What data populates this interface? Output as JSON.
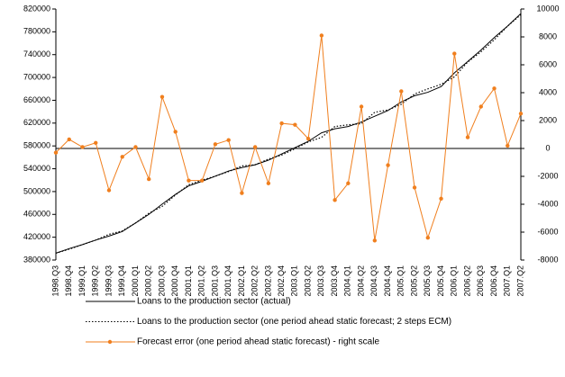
{
  "chart_data": {
    "type": "line",
    "categories": [
      "1998.Q3",
      "1998.Q4",
      "1999.Q1",
      "1999.Q2",
      "1999.Q3",
      "1999.Q4",
      "2000.Q1",
      "2000.Q2",
      "2000.Q3",
      "2000.Q4",
      "2001.Q1",
      "2001.Q2",
      "2001.Q3",
      "2001.Q4",
      "2002.Q1",
      "2002.Q2",
      "2002.Q3",
      "2002.Q4",
      "2003.Q1",
      "2003.Q2",
      "2003.Q3",
      "2003.Q4",
      "2004.Q1",
      "2004.Q2",
      "2004.Q3",
      "2004.Q4",
      "2005.Q1",
      "2005.Q2",
      "2005.Q3",
      "2005.Q4",
      "2006.Q1",
      "2006.Q2",
      "2006.Q3",
      "2006.Q4",
      "2007.Q1",
      "2007.Q2"
    ],
    "series": [
      {
        "name": "Loans to the production sector (actual)",
        "color": "#000000",
        "line_style": "solid",
        "marker": "none",
        "values": [
          392000,
          400000,
          407000,
          415000,
          422000,
          430000,
          445000,
          460000,
          478000,
          495000,
          510000,
          518000,
          527000,
          536000,
          542000,
          547000,
          555000,
          566000,
          577000,
          588000,
          603000,
          610000,
          614000,
          622000,
          632000,
          642000,
          657000,
          668000,
          674000,
          684000,
          708000,
          728000,
          748000,
          770000,
          790000,
          812000
        ]
      },
      {
        "name": "Loans to the production sector (one period ahead static forecast; 2 steps ECM)",
        "color": "#000000",
        "line_style": "dotted",
        "marker": "none",
        "values": [
          392000,
          399000,
          407000,
          415000,
          425000,
          431000,
          445000,
          462000,
          474000,
          494000,
          512000,
          520000,
          527000,
          535000,
          545000,
          547000,
          557000,
          564000,
          575000,
          587000,
          595000,
          614000,
          617000,
          619000,
          639000,
          643000,
          653000,
          671000,
          680000,
          688000,
          701000,
          727000,
          745000,
          766000,
          790000,
          810000
        ]
      },
      {
        "name": "Forecast error (one period ahead static forecast) - right scale",
        "color": "#f07f1e",
        "line_style": "solid",
        "marker": "circle",
        "axis": "y2",
        "values": [
          -300,
          650,
          100,
          400,
          -3000,
          -600,
          100,
          -2200,
          3700,
          1200,
          -2300,
          -2300,
          300,
          600,
          -3200,
          100,
          -2500,
          1800,
          1700,
          700,
          8100,
          -3700,
          -2500,
          3000,
          -6600,
          -1200,
          4100,
          -2800,
          -6400,
          -3600,
          6800,
          800,
          3000,
          4300,
          200,
          2500
        ]
      }
    ],
    "ylim": [
      380000,
      820000
    ],
    "yticks": [
      380000,
      420000,
      460000,
      500000,
      540000,
      580000,
      620000,
      660000,
      700000,
      740000,
      780000,
      820000
    ],
    "y2lim": [
      -8000,
      10000
    ],
    "y2ticks": [
      -8000,
      -6000,
      -4000,
      -2000,
      0,
      2000,
      4000,
      6000,
      8000,
      10000
    ]
  }
}
